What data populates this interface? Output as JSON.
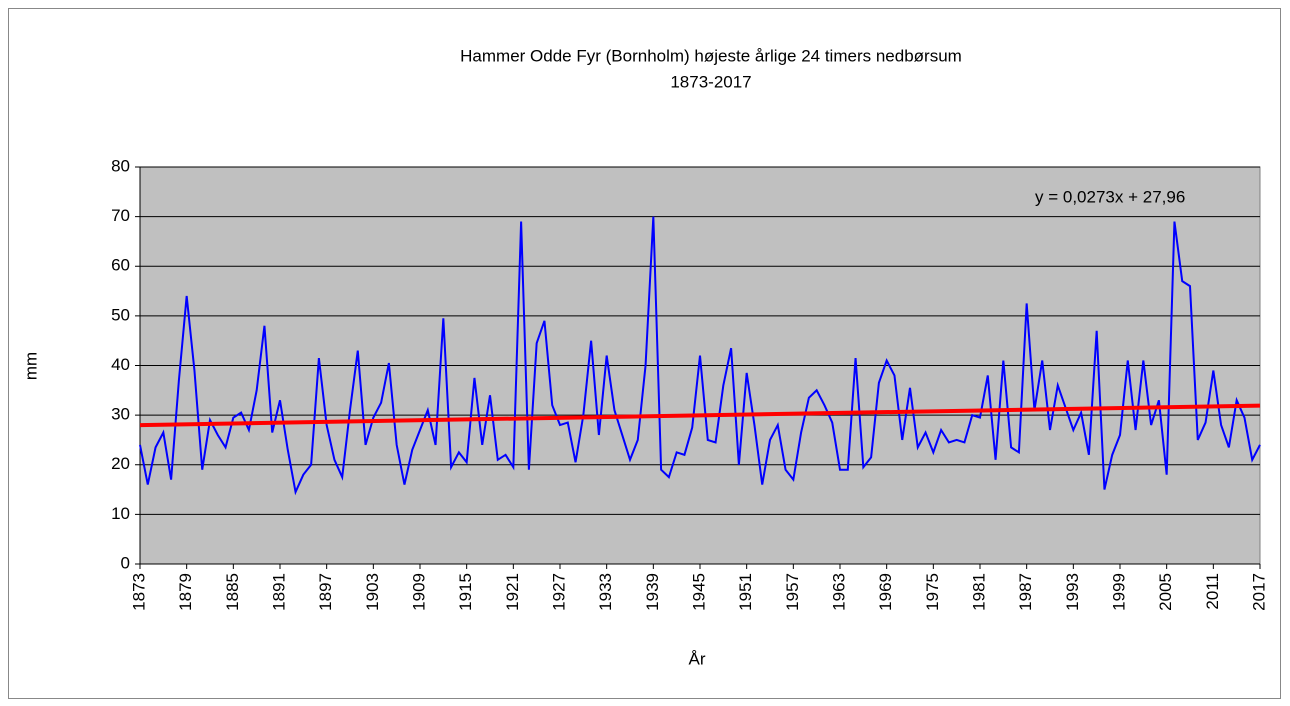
{
  "chart_data": {
    "type": "line",
    "title": "Hammer Odde Fyr (Bornholm) højeste årlige 24 timers nedbørsum",
    "subtitle": "1873-2017",
    "x_label": "År",
    "y_label": "mm",
    "x": [
      1873,
      1874,
      1875,
      1876,
      1877,
      1878,
      1879,
      1880,
      1881,
      1882,
      1883,
      1884,
      1885,
      1886,
      1887,
      1888,
      1889,
      1890,
      1891,
      1892,
      1893,
      1894,
      1895,
      1896,
      1897,
      1898,
      1899,
      1900,
      1901,
      1902,
      1903,
      1904,
      1905,
      1906,
      1907,
      1908,
      1909,
      1910,
      1911,
      1912,
      1913,
      1914,
      1915,
      1916,
      1917,
      1918,
      1919,
      1920,
      1921,
      1922,
      1923,
      1924,
      1925,
      1926,
      1927,
      1928,
      1929,
      1930,
      1931,
      1932,
      1933,
      1934,
      1935,
      1936,
      1937,
      1938,
      1939,
      1940,
      1941,
      1942,
      1943,
      1944,
      1945,
      1946,
      1947,
      1948,
      1949,
      1950,
      1951,
      1952,
      1953,
      1954,
      1955,
      1956,
      1957,
      1958,
      1959,
      1960,
      1961,
      1962,
      1963,
      1964,
      1965,
      1966,
      1967,
      1968,
      1969,
      1970,
      1971,
      1972,
      1973,
      1974,
      1975,
      1976,
      1977,
      1978,
      1979,
      1980,
      1981,
      1982,
      1983,
      1984,
      1985,
      1986,
      1987,
      1988,
      1989,
      1990,
      1991,
      1992,
      1993,
      1994,
      1995,
      1996,
      1997,
      1998,
      1999,
      2000,
      2001,
      2002,
      2003,
      2004,
      2005,
      2006,
      2007,
      2008,
      2009,
      2010,
      2011,
      2012,
      2013,
      2014,
      2015,
      2016,
      2017
    ],
    "series": [
      {
        "color": "#0000ff",
        "values": [
          24,
          16,
          23.5,
          26.5,
          17,
          37,
          54,
          39,
          19,
          29,
          26,
          23.5,
          29.5,
          30.5,
          27,
          35,
          48,
          26.5,
          33,
          23,
          14.5,
          18,
          20,
          41.5,
          28,
          21,
          17.5,
          31,
          43,
          24,
          29.5,
          32.5,
          40.5,
          24,
          16,
          23,
          27,
          31,
          24,
          49.5,
          19.5,
          22.5,
          20.5,
          37.5,
          24,
          34,
          21,
          22,
          19.5,
          69,
          19,
          44.5,
          49,
          32,
          28,
          28.5,
          20.5,
          30,
          45,
          26,
          42,
          31,
          26,
          21,
          25,
          40,
          70,
          19,
          17.5,
          22.5,
          22,
          27.5,
          42,
          25,
          24.5,
          36,
          43.5,
          20,
          38.5,
          28,
          16,
          25,
          28,
          19,
          17,
          26.5,
          33.5,
          35,
          32,
          28.5,
          19,
          19,
          41.5,
          19.5,
          21.5,
          36.5,
          41,
          38,
          25,
          35.5,
          23.5,
          26.5,
          22.5,
          27,
          24.5,
          25,
          24.5,
          30,
          29.5,
          38,
          21,
          41,
          23.5,
          22.5,
          52.5,
          31,
          41,
          27,
          36,
          31.5,
          27,
          30.5,
          22,
          47,
          15,
          22,
          26,
          41,
          27,
          41,
          28,
          33,
          18,
          69,
          57,
          56,
          25,
          28.5,
          39,
          28,
          23.5,
          33,
          29.5,
          21,
          24
        ]
      }
    ],
    "trendline": {
      "slope": 0.0273,
      "intercept": 27.96,
      "color": "#ff0000",
      "label": "y = 0,0273x + 27,96"
    },
    "xlim": [
      1873,
      2017
    ],
    "xticks": [
      1873,
      1879,
      1885,
      1891,
      1897,
      1903,
      1909,
      1915,
      1921,
      1927,
      1933,
      1939,
      1945,
      1951,
      1957,
      1963,
      1969,
      1975,
      1981,
      1987,
      1993,
      1999,
      2005,
      2011,
      2017
    ],
    "ylim": [
      0,
      80
    ],
    "yticks": [
      0,
      10,
      20,
      30,
      40,
      50,
      60,
      70,
      80
    ],
    "grid": true,
    "plot_background": "#c0c0c0"
  }
}
